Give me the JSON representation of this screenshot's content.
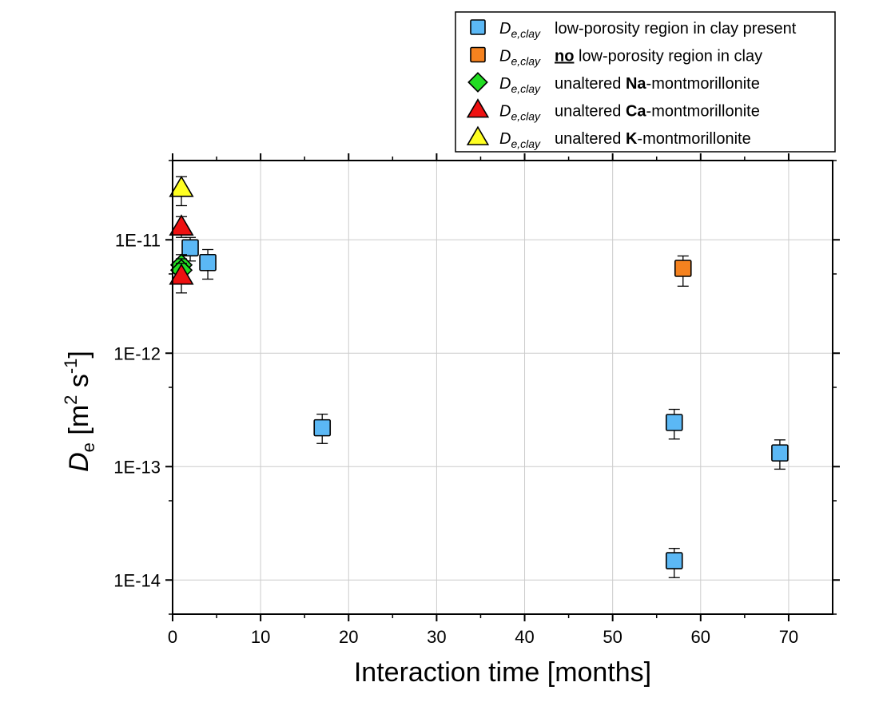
{
  "chart_data": {
    "type": "scatter",
    "title": "",
    "xlabel": "Interaction time [months]",
    "ylabel": {
      "main": "D",
      "sub": "e",
      "units_open": " [m",
      "sup1": "2",
      "units_mid": " s",
      "sup2": "-1",
      "units_close": "]"
    },
    "xlim": [
      0,
      75
    ],
    "ylim": [
      5e-15,
      5e-11
    ],
    "yscale": "log",
    "grid": true,
    "x_ticks": [
      0,
      10,
      20,
      30,
      40,
      50,
      60,
      70
    ],
    "x_tick_labels": [
      "0",
      "10",
      "20",
      "30",
      "40",
      "50",
      "60",
      "70"
    ],
    "y_ticks": [
      1e-14,
      1e-13,
      1e-12,
      1e-11
    ],
    "y_tick_labels": [
      "1E-14",
      "1E-13",
      "1E-12",
      "1E-11"
    ],
    "legend_position": "top-right, outside plot",
    "series": [
      {
        "name": "low-porosity region in clay present",
        "label_symbol": "D",
        "label_sub": "e,clay",
        "label_parts": [
          {
            "text": "low-porosity region in clay present",
            "bold": false,
            "underline": false
          }
        ],
        "marker": "square",
        "color": "#5bb8f5",
        "points": [
          {
            "x": 2,
            "y": 8.5e-12,
            "err_lo": 6.5e-12,
            "err_hi": 1.05e-11
          },
          {
            "x": 4,
            "y": 6.3e-12,
            "err_lo": 4.5e-12,
            "err_hi": 8.2e-12
          },
          {
            "x": 17,
            "y": 2.2e-13,
            "err_lo": 1.6e-13,
            "err_hi": 2.9e-13
          },
          {
            "x": 57,
            "y": 2.45e-13,
            "err_lo": 1.75e-13,
            "err_hi": 3.2e-13
          },
          {
            "x": 57,
            "y": 1.48e-14,
            "err_lo": 1.05e-14,
            "err_hi": 1.9e-14
          },
          {
            "x": 69,
            "y": 1.32e-13,
            "err_lo": 9.5e-14,
            "err_hi": 1.72e-13
          }
        ]
      },
      {
        "name": "no low-porosity region in clay",
        "label_symbol": "D",
        "label_sub": "e,clay",
        "label_parts": [
          {
            "text": "no",
            "bold": true,
            "underline": true
          },
          {
            "text": " low-porosity region in clay",
            "bold": false,
            "underline": false
          }
        ],
        "marker": "square",
        "color": "#f5821f",
        "points": [
          {
            "x": 58,
            "y": 5.6e-12,
            "err_lo": 3.9e-12,
            "err_hi": 7.2e-12
          }
        ]
      },
      {
        "name": "unaltered Na-montmorillonite",
        "label_symbol": "D",
        "label_sub": "e,clay",
        "label_parts": [
          {
            "text": "unaltered ",
            "bold": false,
            "underline": false
          },
          {
            "text": "Na",
            "bold": true,
            "underline": false
          },
          {
            "text": "-montmorillonite",
            "bold": false,
            "underline": false
          }
        ],
        "marker": "diamond",
        "color": "#22dd22",
        "points": [
          {
            "x": 1,
            "y": 6e-12,
            "err_lo": 4.6e-12,
            "err_hi": 7.4e-12
          },
          {
            "x": 1,
            "y": 5.4e-12,
            "err_lo": 4.2e-12,
            "err_hi": 6.8e-12
          }
        ]
      },
      {
        "name": "unaltered Ca-montmorillonite",
        "label_symbol": "D",
        "label_sub": "e,clay",
        "label_parts": [
          {
            "text": "unaltered ",
            "bold": false,
            "underline": false
          },
          {
            "text": "Ca",
            "bold": true,
            "underline": false
          },
          {
            "text": "-montmorillonite",
            "bold": false,
            "underline": false
          }
        ],
        "marker": "triangle",
        "color": "#ee1111",
        "points": [
          {
            "x": 1,
            "y": 1.3e-11,
            "err_lo": 1.05e-11,
            "err_hi": 1.6e-11
          },
          {
            "x": 1,
            "y": 4.8e-12,
            "err_lo": 3.4e-12,
            "err_hi": 6.2e-12
          }
        ]
      },
      {
        "name": "unaltered K-montmorillonite",
        "label_symbol": "D",
        "label_sub": "e,clay",
        "label_parts": [
          {
            "text": "unaltered ",
            "bold": false,
            "underline": false
          },
          {
            "text": "K",
            "bold": true,
            "underline": false
          },
          {
            "text": "-montmorillonite",
            "bold": false,
            "underline": false
          }
        ],
        "marker": "triangle",
        "color": "#ffff22",
        "points": [
          {
            "x": 1,
            "y": 2.85e-11,
            "err_lo": 2e-11,
            "err_hi": 3.6e-11
          }
        ]
      }
    ]
  }
}
